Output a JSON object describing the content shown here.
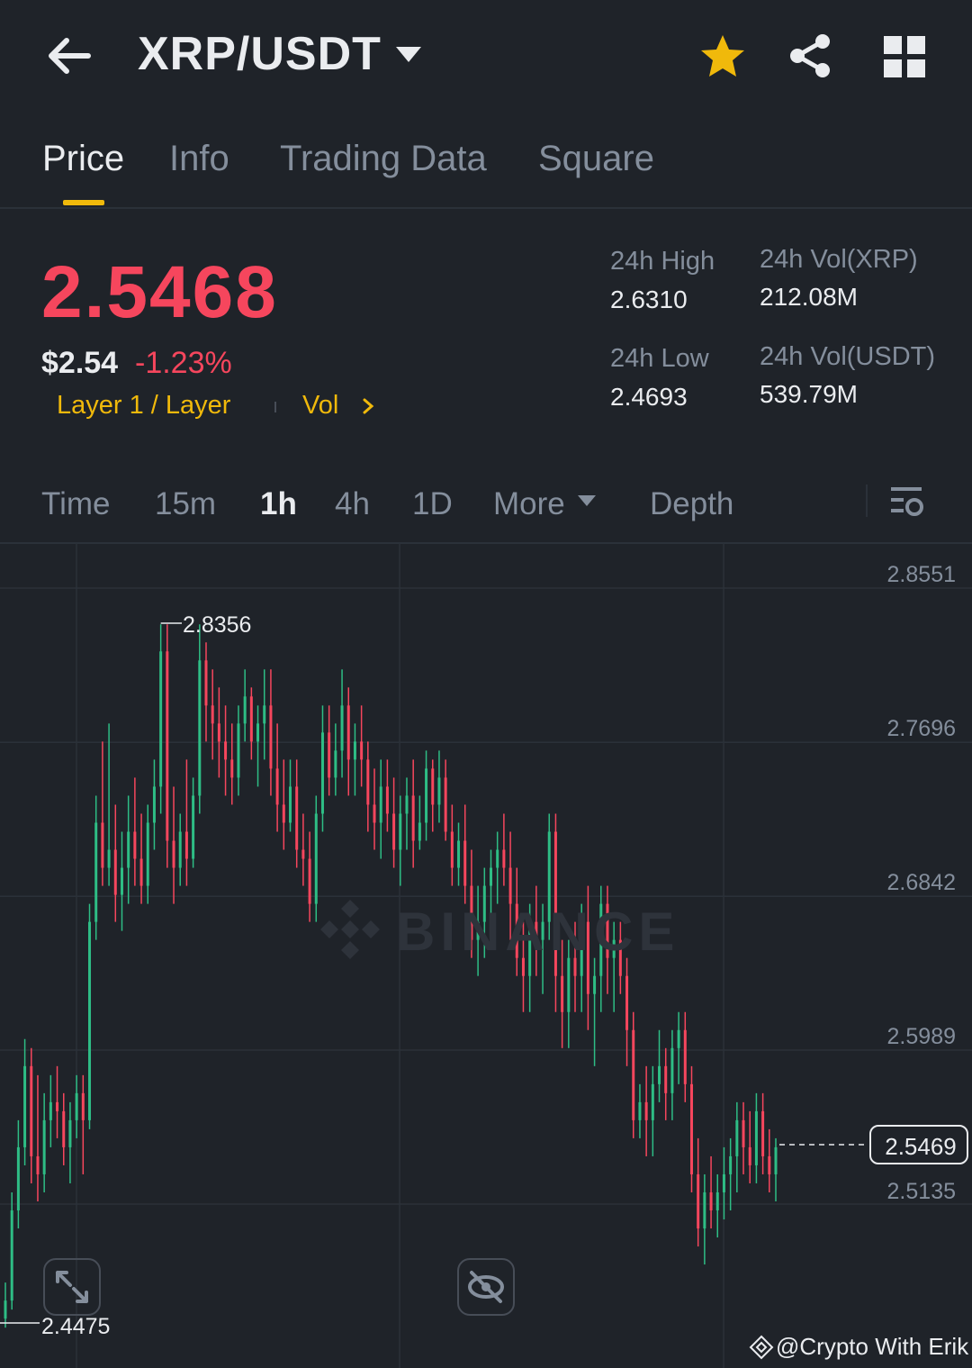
{
  "header": {
    "pair": "XRP/USDT",
    "icons": [
      "back-arrow-icon",
      "caret-down-icon",
      "star-icon",
      "share-icon",
      "grid-icon"
    ],
    "star_color": "#f0b90b"
  },
  "tabs": [
    {
      "label": "Price",
      "active": true
    },
    {
      "label": "Info",
      "active": false
    },
    {
      "label": "Trading Data",
      "active": false
    },
    {
      "label": "Square",
      "active": false
    }
  ],
  "price": {
    "last": "2.5468",
    "usd": "$2.54",
    "change_pct": "-1.23%",
    "tag_category": "Layer 1 / Layer",
    "tag_vol": "Vol"
  },
  "stats": {
    "high_label": "24h High",
    "high_value": "2.6310",
    "low_label": "24h Low",
    "low_value": "2.4693",
    "vol_base_label": "24h Vol(XRP)",
    "vol_base_value": "212.08M",
    "vol_quote_label": "24h Vol(USDT)",
    "vol_quote_value": "539.79M"
  },
  "intervals": [
    "Time",
    "15m",
    "1h",
    "4h",
    "1D",
    "More",
    "Depth"
  ],
  "active_interval": "1h",
  "colors": {
    "up": "#2ebd85",
    "down": "#f6465d",
    "accent": "#f0b90b",
    "bg": "#1f2329"
  },
  "chart": {
    "watermark": "BINANCE",
    "credit": "@Crypto With Erik",
    "high_marker": "2.8356",
    "low_marker": "2.4475",
    "current_price": "2.5469"
  },
  "chart_data": {
    "type": "candlestick",
    "y_ticks": [
      "2.8551",
      "2.7696",
      "2.6842",
      "2.5989",
      "2.5135"
    ],
    "ylim": [
      2.4475,
      2.8551
    ],
    "current_price": 2.5469,
    "max_marker": 2.8356,
    "min_marker": 2.4475,
    "candles": [
      [
        2.45,
        2.47,
        2.445,
        2.46
      ],
      [
        2.46,
        2.52,
        2.455,
        2.51
      ],
      [
        2.51,
        2.56,
        2.5,
        2.545
      ],
      [
        2.545,
        2.605,
        2.535,
        2.59
      ],
      [
        2.59,
        2.6,
        2.525,
        2.54
      ],
      [
        2.54,
        2.585,
        2.515,
        2.53
      ],
      [
        2.53,
        2.575,
        2.52,
        2.56
      ],
      [
        2.56,
        2.585,
        2.545,
        2.57
      ],
      [
        2.57,
        2.59,
        2.55,
        2.565
      ],
      [
        2.565,
        2.575,
        2.535,
        2.545
      ],
      [
        2.545,
        2.57,
        2.525,
        2.56
      ],
      [
        2.56,
        2.585,
        2.55,
        2.575
      ],
      [
        2.575,
        2.585,
        2.53,
        2.56
      ],
      [
        2.56,
        2.68,
        2.555,
        2.67
      ],
      [
        2.67,
        2.74,
        2.66,
        2.725
      ],
      [
        2.725,
        2.77,
        2.69,
        2.7
      ],
      [
        2.7,
        2.78,
        2.69,
        2.71
      ],
      [
        2.71,
        2.735,
        2.67,
        2.685
      ],
      [
        2.685,
        2.72,
        2.665,
        2.7
      ],
      [
        2.7,
        2.74,
        2.68,
        2.72
      ],
      [
        2.72,
        2.75,
        2.69,
        2.705
      ],
      [
        2.705,
        2.73,
        2.68,
        2.69
      ],
      [
        2.69,
        2.735,
        2.68,
        2.725
      ],
      [
        2.725,
        2.76,
        2.71,
        2.745
      ],
      [
        2.745,
        2.835,
        2.73,
        2.82
      ],
      [
        2.82,
        2.835,
        2.7,
        2.715
      ],
      [
        2.715,
        2.745,
        2.68,
        2.7
      ],
      [
        2.7,
        2.73,
        2.69,
        2.72
      ],
      [
        2.72,
        2.76,
        2.69,
        2.705
      ],
      [
        2.705,
        2.75,
        2.7,
        2.74
      ],
      [
        2.74,
        2.835,
        2.73,
        2.815
      ],
      [
        2.815,
        2.825,
        2.77,
        2.79
      ],
      [
        2.79,
        2.81,
        2.76,
        2.78
      ],
      [
        2.78,
        2.8,
        2.75,
        2.77
      ],
      [
        2.77,
        2.79,
        2.74,
        2.76
      ],
      [
        2.76,
        2.78,
        2.735,
        2.75
      ],
      [
        2.75,
        2.79,
        2.74,
        2.78
      ],
      [
        2.78,
        2.81,
        2.77,
        2.795
      ],
      [
        2.795,
        2.8,
        2.76,
        2.77
      ],
      [
        2.77,
        2.79,
        2.745,
        2.78
      ],
      [
        2.78,
        2.81,
        2.76,
        2.79
      ],
      [
        2.79,
        2.81,
        2.74,
        2.755
      ],
      [
        2.755,
        2.78,
        2.72,
        2.735
      ],
      [
        2.735,
        2.76,
        2.71,
        2.725
      ],
      [
        2.725,
        2.76,
        2.72,
        2.745
      ],
      [
        2.745,
        2.76,
        2.7,
        2.71
      ],
      [
        2.71,
        2.73,
        2.69,
        2.705
      ],
      [
        2.705,
        2.72,
        2.67,
        2.68
      ],
      [
        2.68,
        2.74,
        2.67,
        2.73
      ],
      [
        2.73,
        2.79,
        2.72,
        2.775
      ],
      [
        2.775,
        2.79,
        2.74,
        2.75
      ],
      [
        2.75,
        2.78,
        2.74,
        2.765
      ],
      [
        2.765,
        2.81,
        2.75,
        2.79
      ],
      [
        2.79,
        2.8,
        2.74,
        2.76
      ],
      [
        2.76,
        2.78,
        2.74,
        2.77
      ],
      [
        2.77,
        2.79,
        2.745,
        2.76
      ],
      [
        2.76,
        2.77,
        2.72,
        2.735
      ],
      [
        2.735,
        2.755,
        2.71,
        2.725
      ],
      [
        2.725,
        2.76,
        2.705,
        2.745
      ],
      [
        2.745,
        2.76,
        2.72,
        2.73
      ],
      [
        2.73,
        2.75,
        2.7,
        2.71
      ],
      [
        2.71,
        2.74,
        2.69,
        2.73
      ],
      [
        2.73,
        2.75,
        2.71,
        2.74
      ],
      [
        2.74,
        2.76,
        2.7,
        2.715
      ],
      [
        2.715,
        2.74,
        2.71,
        2.725
      ],
      [
        2.725,
        2.765,
        2.715,
        2.755
      ],
      [
        2.755,
        2.76,
        2.72,
        2.735
      ],
      [
        2.735,
        2.765,
        2.725,
        2.75
      ],
      [
        2.75,
        2.76,
        2.715,
        2.72
      ],
      [
        2.72,
        2.735,
        2.69,
        2.7
      ],
      [
        2.7,
        2.725,
        2.69,
        2.715
      ],
      [
        2.715,
        2.735,
        2.68,
        2.69
      ],
      [
        2.69,
        2.71,
        2.65,
        2.66
      ],
      [
        2.66,
        2.69,
        2.64,
        2.67
      ],
      [
        2.67,
        2.7,
        2.65,
        2.69
      ],
      [
        2.69,
        2.71,
        2.67,
        2.7
      ],
      [
        2.7,
        2.72,
        2.68,
        2.71
      ],
      [
        2.71,
        2.73,
        2.69,
        2.7
      ],
      [
        2.7,
        2.72,
        2.66,
        2.68
      ],
      [
        2.68,
        2.7,
        2.64,
        2.65
      ],
      [
        2.65,
        2.67,
        2.62,
        2.64
      ],
      [
        2.64,
        2.68,
        2.62,
        2.67
      ],
      [
        2.67,
        2.69,
        2.64,
        2.66
      ],
      [
        2.66,
        2.68,
        2.63,
        2.67
      ],
      [
        2.67,
        2.73,
        2.66,
        2.72
      ],
      [
        2.72,
        2.73,
        2.62,
        2.64
      ],
      [
        2.64,
        2.66,
        2.6,
        2.62
      ],
      [
        2.62,
        2.66,
        2.6,
        2.65
      ],
      [
        2.65,
        2.67,
        2.62,
        2.64
      ],
      [
        2.64,
        2.68,
        2.62,
        2.67
      ],
      [
        2.67,
        2.69,
        2.61,
        2.63
      ],
      [
        2.63,
        2.65,
        2.59,
        2.64
      ],
      [
        2.64,
        2.69,
        2.62,
        2.68
      ],
      [
        2.68,
        2.69,
        2.63,
        2.65
      ],
      [
        2.65,
        2.67,
        2.62,
        2.66
      ],
      [
        2.66,
        2.67,
        2.63,
        2.64
      ],
      [
        2.64,
        2.65,
        2.59,
        2.61
      ],
      [
        2.61,
        2.62,
        2.55,
        2.56
      ],
      [
        2.56,
        2.58,
        2.55,
        2.57
      ],
      [
        2.57,
        2.59,
        2.54,
        2.56
      ],
      [
        2.56,
        2.59,
        2.54,
        2.58
      ],
      [
        2.58,
        2.61,
        2.57,
        2.59
      ],
      [
        2.59,
        2.6,
        2.56,
        2.575
      ],
      [
        2.575,
        2.61,
        2.56,
        2.6
      ],
      [
        2.6,
        2.62,
        2.58,
        2.61
      ],
      [
        2.61,
        2.62,
        2.57,
        2.58
      ],
      [
        2.58,
        2.59,
        2.52,
        2.53
      ],
      [
        2.53,
        2.55,
        2.49,
        2.5
      ],
      [
        2.5,
        2.53,
        2.48,
        2.52
      ],
      [
        2.52,
        2.54,
        2.5,
        2.51
      ],
      [
        2.51,
        2.53,
        2.495,
        2.52
      ],
      [
        2.52,
        2.545,
        2.505,
        2.53
      ],
      [
        2.53,
        2.55,
        2.51,
        2.54
      ],
      [
        2.54,
        2.57,
        2.52,
        2.56
      ],
      [
        2.56,
        2.57,
        2.53,
        2.545
      ],
      [
        2.545,
        2.565,
        2.525,
        2.535
      ],
      [
        2.535,
        2.575,
        2.525,
        2.565
      ],
      [
        2.565,
        2.575,
        2.53,
        2.54
      ],
      [
        2.54,
        2.555,
        2.52,
        2.53
      ],
      [
        2.53,
        2.55,
        2.515,
        2.545
      ]
    ]
  }
}
